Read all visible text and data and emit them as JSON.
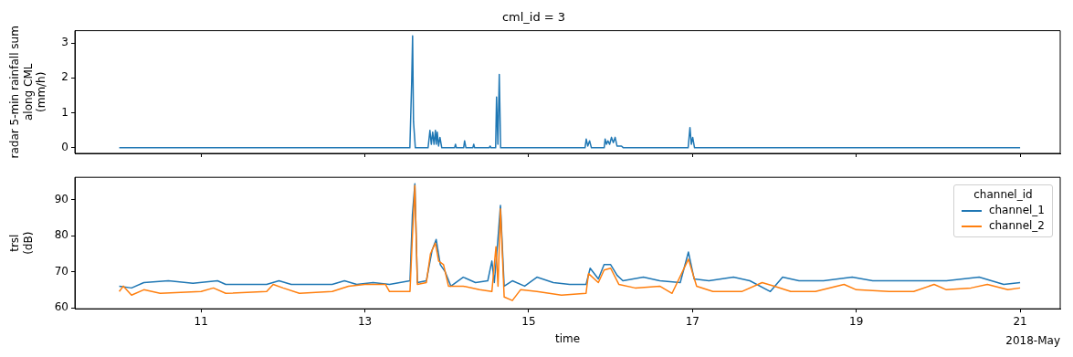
{
  "chart_data": [
    {
      "type": "line",
      "title": "cml_id = 3",
      "ylabel": "radar 5-min rainfall sum\nalong CML\n(mm/h)",
      "color": "#1f77b4",
      "tick_labels": "y",
      "x": [
        "2018-05-10T00:00",
        "2018-05-13T13:10",
        "2018-05-13T13:42",
        "2018-05-13T13:58",
        "2018-05-13T14:14",
        "2018-05-13T14:46",
        "2018-05-13T18:30",
        "2018-05-13T19:03",
        "2018-05-13T19:27",
        "2018-05-13T19:51",
        "2018-05-13T20:15",
        "2018-05-13T20:39",
        "2018-05-13T20:55",
        "2018-05-13T21:11",
        "2018-05-13T21:35",
        "2018-05-13T21:59",
        "2018-05-13T22:31",
        "2018-05-14T02:16",
        "2018-05-14T02:32",
        "2018-05-14T02:48",
        "2018-05-14T04:56",
        "2018-05-14T05:12",
        "2018-05-14T05:36",
        "2018-05-14T07:37",
        "2018-05-14T07:53",
        "2018-05-14T08:09",
        "2018-05-14T12:25",
        "2018-05-14T12:41",
        "2018-05-14T12:57",
        "2018-05-14T14:18",
        "2018-05-14T14:34",
        "2018-05-14T14:58",
        "2018-05-14T15:22",
        "2018-05-14T15:46",
        "2018-05-15T16:30",
        "2018-05-15T16:51",
        "2018-05-15T17:18",
        "2018-05-15T17:50",
        "2018-05-15T18:22",
        "2018-05-15T22:07",
        "2018-05-15T22:23",
        "2018-05-15T22:47",
        "2018-05-15T23:11",
        "2018-05-15T23:43",
        "2018-05-16T00:15",
        "2018-05-16T00:47",
        "2018-05-16T01:19",
        "2018-05-16T01:52",
        "2018-05-16T02:23",
        "2018-05-16T03:11",
        "2018-05-16T03:44",
        "2018-05-16T22:43",
        "2018-05-16T23:15",
        "2018-05-16T23:39",
        "2018-05-17T00:03",
        "2018-05-17T00:35",
        "2018-05-21T00:00"
      ],
      "values": [
        0,
        0,
        1.9,
        3.2,
        0.75,
        0,
        0,
        0.5,
        0.1,
        0.45,
        0.1,
        0.5,
        0.1,
        0.45,
        0.05,
        0.3,
        0,
        0,
        0.1,
        0,
        0,
        0.2,
        0,
        0,
        0.1,
        0,
        0,
        0.05,
        0,
        0,
        1.45,
        0.1,
        2.1,
        0,
        0,
        0.25,
        0.05,
        0.2,
        0,
        0,
        0.25,
        0.1,
        0.2,
        0.1,
        0.3,
        0.15,
        0.3,
        0.05,
        0.05,
        0.05,
        0,
        0,
        0.58,
        0.1,
        0.3,
        0,
        0
      ],
      "xlim": [
        "2018-05-09T11:00",
        "2018-05-21T11:45"
      ],
      "xticks": [
        {
          "value": "2018-05-11",
          "label": null
        },
        {
          "value": "2018-05-13",
          "label": null
        },
        {
          "value": "2018-05-15",
          "label": null
        },
        {
          "value": "2018-05-17",
          "label": null
        },
        {
          "value": "2018-05-19",
          "label": null
        },
        {
          "value": "2018-05-21",
          "label": null
        }
      ],
      "ylim": [
        -0.16,
        3.35
      ],
      "yticks": [
        0,
        1,
        2,
        3
      ]
    },
    {
      "type": "line",
      "xlabel": "time",
      "ylabel": "trsl\n(dB)",
      "legend": "top right",
      "legend_title": "channel_id",
      "annotations": [
        "2018-May"
      ],
      "series": [
        {
          "name": "channel_1",
          "color": "#1f77b4",
          "x": [
            "2018-05-10T00:00",
            "2018-05-10T03:36",
            "2018-05-10T07:12",
            "2018-05-10T14:24",
            "2018-05-10T21:36",
            "2018-05-11T04:48",
            "2018-05-11T07:12",
            "2018-05-11T19:12",
            "2018-05-11T22:48",
            "2018-05-12T02:24",
            "2018-05-12T14:24",
            "2018-05-12T18:00",
            "2018-05-12T21:36",
            "2018-05-13T02:24",
            "2018-05-13T07:12",
            "2018-05-13T13:12",
            "2018-05-13T13:55",
            "2018-05-13T14:38",
            "2018-05-13T15:22",
            "2018-05-13T18:00",
            "2018-05-13T19:41",
            "2018-05-13T20:53",
            "2018-05-13T22:05",
            "2018-05-13T23:31",
            "2018-05-14T01:12",
            "2018-05-14T04:48",
            "2018-05-14T08:24",
            "2018-05-14T12:00",
            "2018-05-14T13:12",
            "2018-05-14T13:55",
            "2018-05-14T14:53",
            "2018-05-14T15:43",
            "2018-05-14T16:48",
            "2018-05-14T19:12",
            "2018-05-14T22:48",
            "2018-05-15T02:24",
            "2018-05-15T07:12",
            "2018-05-15T12:00",
            "2018-05-15T16:48",
            "2018-05-15T18:00",
            "2018-05-15T20:24",
            "2018-05-15T22:05",
            "2018-05-16T00:00",
            "2018-05-16T01:55",
            "2018-05-16T03:36",
            "2018-05-16T09:36",
            "2018-05-16T14:24",
            "2018-05-16T20:24",
            "2018-05-16T22:48",
            "2018-05-17T00:29",
            "2018-05-17T04:48",
            "2018-05-17T12:00",
            "2018-05-17T16:48",
            "2018-05-17T22:48",
            "2018-05-18T02:24",
            "2018-05-18T07:12",
            "2018-05-18T14:24",
            "2018-05-18T22:48",
            "2018-05-19T04:48",
            "2018-05-19T16:48",
            "2018-05-20T02:24",
            "2018-05-20T12:00",
            "2018-05-20T19:12",
            "2018-05-21T00:00"
          ],
          "values": [
            66,
            65.5,
            67,
            67.5,
            66.8,
            67.5,
            66.5,
            66.5,
            67.5,
            66.5,
            66.5,
            67.5,
            66.5,
            67,
            66.5,
            67.5,
            86,
            94.5,
            67,
            67.5,
            76,
            79,
            72,
            70,
            66,
            68.5,
            67,
            67.5,
            73,
            67,
            78,
            88.5,
            66,
            67.5,
            66,
            68.5,
            67,
            66.5,
            66.5,
            71,
            68,
            72,
            72,
            69,
            67.5,
            68.5,
            67.5,
            67,
            75.5,
            68,
            67.5,
            68.5,
            67.5,
            64.5,
            68.5,
            67.5,
            67.5,
            68.5,
            67.5,
            67.5,
            67.5,
            68.5,
            66.5,
            67
          ]
        },
        {
          "name": "channel_2",
          "color": "#ff7f0e",
          "x": [
            "2018-05-10T00:00",
            "2018-05-10T01:12",
            "2018-05-10T03:36",
            "2018-05-10T07:12",
            "2018-05-10T12:00",
            "2018-05-11T00:00",
            "2018-05-11T03:36",
            "2018-05-11T07:12",
            "2018-05-11T19:12",
            "2018-05-11T21:07",
            "2018-05-12T00:00",
            "2018-05-12T04:48",
            "2018-05-12T14:24",
            "2018-05-12T19:12",
            "2018-05-13T00:00",
            "2018-05-13T06:00",
            "2018-05-13T07:12",
            "2018-05-13T13:12",
            "2018-05-13T13:55",
            "2018-05-13T14:38",
            "2018-05-13T15:22",
            "2018-05-13T18:00",
            "2018-05-13T19:12",
            "2018-05-13T20:38",
            "2018-05-13T21:36",
            "2018-05-13T23:02",
            "2018-05-14T00:29",
            "2018-05-14T04:48",
            "2018-05-14T09:36",
            "2018-05-14T13:12",
            "2018-05-14T14:24",
            "2018-05-14T15:00",
            "2018-05-14T15:43",
            "2018-05-14T16:48",
            "2018-05-14T19:12",
            "2018-05-14T21:36",
            "2018-05-15T02:24",
            "2018-05-15T09:36",
            "2018-05-15T16:48",
            "2018-05-15T17:31",
            "2018-05-15T20:24",
            "2018-05-15T22:05",
            "2018-05-16T00:00",
            "2018-05-16T02:24",
            "2018-05-16T07:12",
            "2018-05-16T14:24",
            "2018-05-16T18:00",
            "2018-05-16T22:48",
            "2018-05-17T01:12",
            "2018-05-17T06:00",
            "2018-05-17T14:24",
            "2018-05-17T20:24",
            "2018-05-18T00:00",
            "2018-05-18T04:48",
            "2018-05-18T12:00",
            "2018-05-18T20:24",
            "2018-05-19T00:00",
            "2018-05-19T09:36",
            "2018-05-19T16:48",
            "2018-05-19T22:48",
            "2018-05-20T02:24",
            "2018-05-20T09:36",
            "2018-05-20T14:24",
            "2018-05-20T20:24",
            "2018-05-21T00:00"
          ],
          "values": [
            64.5,
            66,
            63.5,
            65,
            64,
            64.5,
            65.5,
            64,
            64.5,
            66.5,
            65.5,
            64,
            64.5,
            66,
            66.5,
            66.5,
            64.5,
            64.5,
            80,
            94,
            66.5,
            67,
            75,
            78,
            73,
            72,
            66,
            66,
            65,
            64.5,
            77,
            66,
            87.5,
            63,
            62,
            65,
            64.5,
            63.5,
            64,
            69.5,
            67,
            70.5,
            71,
            66.5,
            65.5,
            66,
            64,
            73.5,
            66,
            64.5,
            64.5,
            67,
            66,
            64.5,
            64.5,
            66.5,
            65,
            64.5,
            64.5,
            66.5,
            65,
            65.5,
            66.5,
            65,
            65.5
          ]
        }
      ],
      "xlim": [
        "2018-05-09T11:00",
        "2018-05-21T11:45"
      ],
      "xticks": [
        {
          "value": "2018-05-11",
          "label": "11"
        },
        {
          "value": "2018-05-13",
          "label": "13"
        },
        {
          "value": "2018-05-15",
          "label": "15"
        },
        {
          "value": "2018-05-17",
          "label": "17"
        },
        {
          "value": "2018-05-19",
          "label": "19"
        },
        {
          "value": "2018-05-21",
          "label": "21"
        }
      ],
      "ylim": [
        59.7,
        96.3
      ],
      "yticks": [
        60,
        70,
        80,
        90
      ]
    }
  ]
}
